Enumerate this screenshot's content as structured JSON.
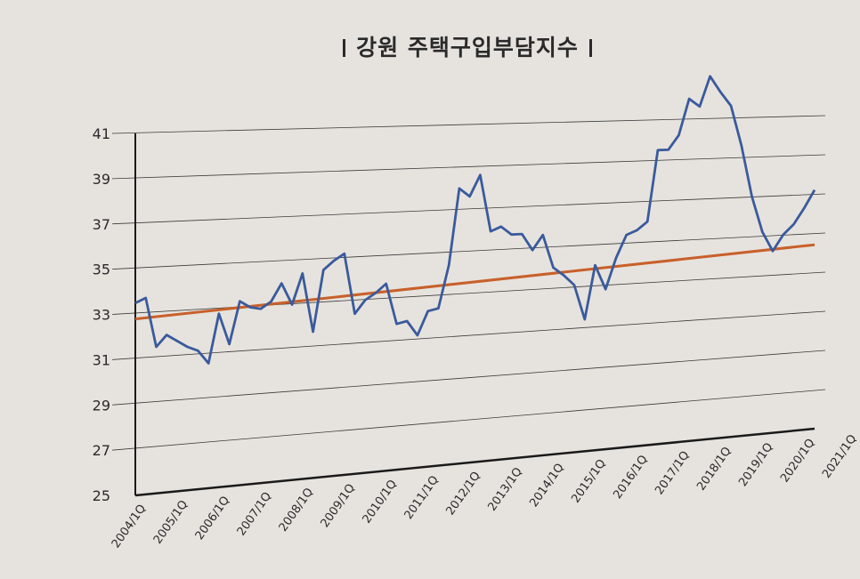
{
  "chart_data": {
    "type": "line",
    "title": "강원 주택구입부담지수",
    "ylim": [
      25,
      41
    ],
    "y_ticks": [
      "25",
      "27",
      "29",
      "31",
      "33",
      "35",
      "37",
      "39",
      "41"
    ],
    "x_tick_labels": [
      "2004/1Q",
      "2005/1Q",
      "2006/1Q",
      "2007/1Q",
      "2008/1Q",
      "2009/1Q",
      "2010/1Q",
      "2011/1Q",
      "2012/1Q",
      "2013/1Q",
      "2014/1Q",
      "2015/1Q",
      "2016/1Q",
      "2017/1Q",
      "2018/1Q",
      "2019/1Q",
      "2020/1Q",
      "2021/1Q"
    ],
    "grid": true,
    "series": [
      {
        "color": "#3a5a9c",
        "values": [
          33.5,
          33.7,
          31.5,
          32.0,
          31.7,
          31.4,
          31.2,
          30.6,
          32.8,
          31.4,
          33.3,
          33.0,
          32.9,
          33.2,
          34.0,
          33.0,
          34.4,
          31.7,
          34.5,
          34.9,
          35.2,
          32.4,
          33.0,
          33.3,
          33.7,
          31.8,
          31.9,
          31.2,
          32.3,
          32.4,
          34.4,
          38.0,
          37.6,
          38.6,
          35.9,
          36.1,
          35.7,
          35.7,
          34.9,
          35.6,
          34.0,
          33.6,
          33.1,
          31.4,
          34.0,
          32.8,
          34.3,
          35.4,
          35.6,
          36.0,
          39.5,
          39.5,
          40.2,
          42.0,
          41.6,
          43.1,
          42.3,
          41.6,
          39.6,
          37.0,
          35.2,
          34.2,
          35.0,
          35.5,
          36.3,
          37.2
        ]
      },
      {
        "color": "#c8602a",
        "start": 32.8,
        "end": 34.4
      }
    ]
  }
}
